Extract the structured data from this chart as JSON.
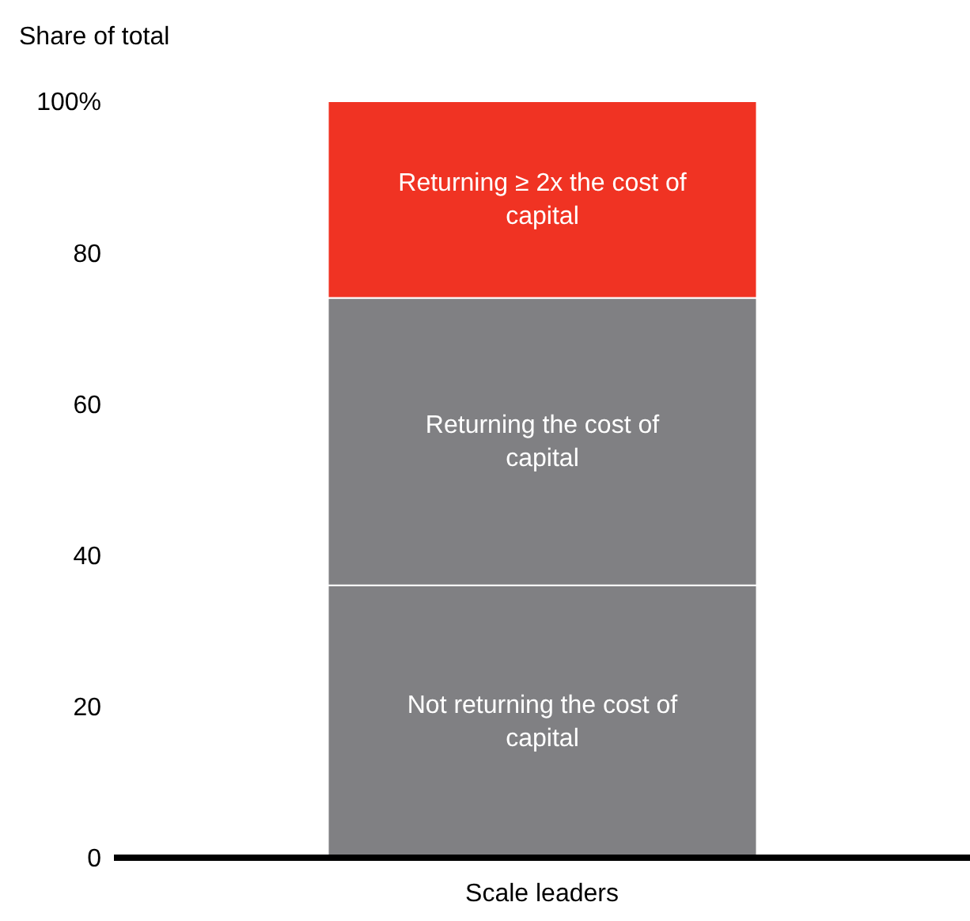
{
  "chart_data": {
    "type": "bar",
    "stacked": true,
    "ylabel": "Share of total",
    "categories": [
      "Scale leaders"
    ],
    "series": [
      {
        "name": "Not returning the cost of capital",
        "color": "#808083",
        "values": [
          36
        ]
      },
      {
        "name": "Returning the cost of capital",
        "color": "#808083",
        "values": [
          38
        ]
      },
      {
        "name": "Returning ≥ 2x the cost of capital",
        "color": "#f03323",
        "values": [
          26
        ]
      }
    ],
    "ylim": [
      0,
      100
    ],
    "yticks": [
      0,
      20,
      40,
      60,
      80,
      {
        "value": 100,
        "label": "100%"
      }
    ],
    "grid": false,
    "legend": false
  }
}
